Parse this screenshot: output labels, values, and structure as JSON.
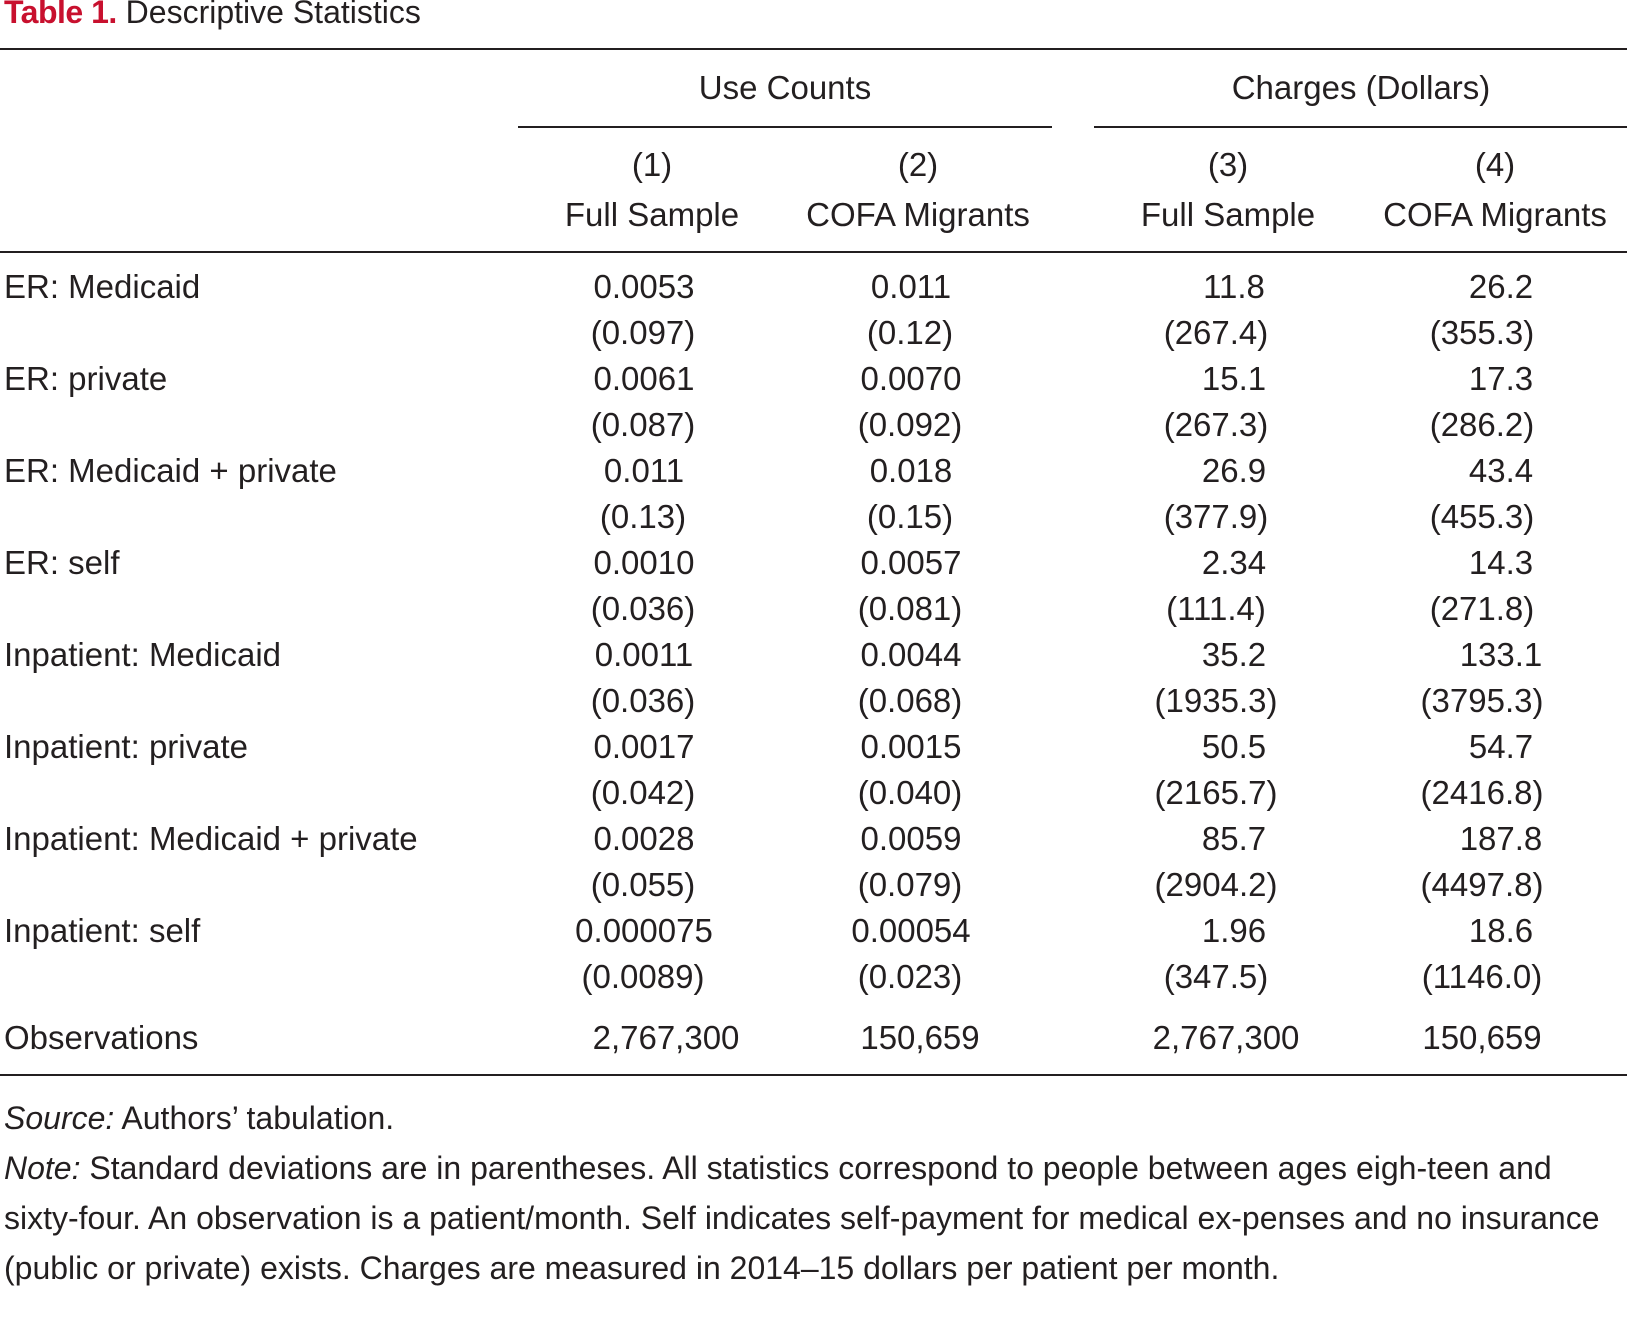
{
  "title": {
    "label": "Table 1.",
    "text": "Descriptive Statistics"
  },
  "header": {
    "groups": [
      {
        "label": "Use Counts"
      },
      {
        "label": "Charges (Dollars)"
      }
    ],
    "columns": [
      {
        "number": "(1)",
        "label": "Full Sample"
      },
      {
        "number": "(2)",
        "label": "COFA Migrants"
      },
      {
        "number": "(3)",
        "label": "Full Sample"
      },
      {
        "number": "(4)",
        "label": "COFA Migrants"
      }
    ]
  },
  "rows": [
    {
      "label": "ER: Medicaid",
      "means": [
        "0.0053",
        "0.011",
        "11.8",
        "26.2"
      ],
      "sds": [
        "(0.097)",
        "(0.12)",
        "(267.4)",
        "(355.3)"
      ]
    },
    {
      "label": "ER: private",
      "means": [
        "0.0061",
        "0.0070",
        "15.1",
        "17.3"
      ],
      "sds": [
        "(0.087)",
        "(0.092)",
        "(267.3)",
        "(286.2)"
      ]
    },
    {
      "label": "ER: Medicaid + private",
      "means": [
        "0.011",
        "0.018",
        "26.9",
        "43.4"
      ],
      "sds": [
        "(0.13)",
        "(0.15)",
        "(377.9)",
        "(455.3)"
      ]
    },
    {
      "label": "ER: self",
      "means": [
        "0.0010",
        "0.0057",
        "2.34",
        "14.3"
      ],
      "sds": [
        "(0.036)",
        "(0.081)",
        "(111.4)",
        "(271.8)"
      ]
    },
    {
      "label": "Inpatient: Medicaid",
      "means": [
        "0.0011",
        "0.0044",
        "35.2",
        "133.1"
      ],
      "sds": [
        "(0.036)",
        "(0.068)",
        "(1935.3)",
        "(3795.3)"
      ]
    },
    {
      "label": "Inpatient: private",
      "means": [
        "0.0017",
        "0.0015",
        "50.5",
        "54.7"
      ],
      "sds": [
        "(0.042)",
        "(0.040)",
        "(2165.7)",
        "(2416.8)"
      ]
    },
    {
      "label": "Inpatient: Medicaid + private",
      "means": [
        "0.0028",
        "0.0059",
        "85.7",
        "187.8"
      ],
      "sds": [
        "(0.055)",
        "(0.079)",
        "(2904.2)",
        "(4497.8)"
      ]
    },
    {
      "label": "Inpatient: self",
      "means": [
        "0.000075",
        "0.00054",
        "1.96",
        "18.6"
      ],
      "sds": [
        "(0.0089)",
        "(0.023)",
        "(347.5)",
        "(1146.0)"
      ]
    }
  ],
  "observations": {
    "label": "Observations",
    "values": [
      "2,767,300",
      "150,659",
      "2,767,300",
      "150,659"
    ]
  },
  "notes": {
    "source_label": "Source:",
    "source_text": "Authors’ tabulation.",
    "note_label": "Note:",
    "note_text": "Standard deviations are in parentheses. All statistics correspond to people between ages eigh-teen and sixty-four. An observation is a patient/month. Self indicates self-payment for medical ex-penses and no insurance (public or private) exists. Charges are measured in 2014–15 dollars per patient per month."
  }
}
